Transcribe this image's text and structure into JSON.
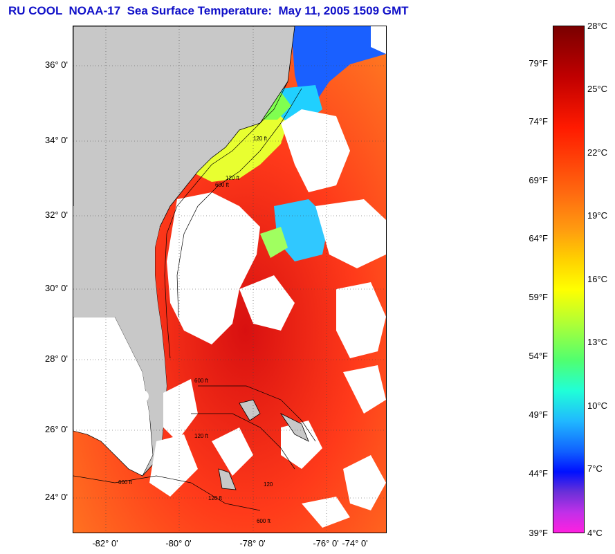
{
  "title": "RU COOL  NOAA-17  Sea Surface Temperature:  May 11, 2005 1509 GMT",
  "map": {
    "lat_labels": [
      "36° 0'",
      "34° 0'",
      "32° 0'",
      "30° 0'",
      "28° 0'",
      "26° 0'",
      "24° 0'"
    ],
    "lon_labels": [
      "-82° 0'",
      "-80° 0'",
      "-78° 0'",
      "-76° 0'",
      "-74° 0'"
    ],
    "contour_labels": [
      "120 ft",
      "600 ft",
      "120 ft",
      "120 ft",
      "600 ft",
      "600 ft",
      "120 ft",
      "120",
      "600 ft"
    ],
    "colors": {
      "land": "#c8c8c8",
      "cloud": "#ffffff",
      "warm": "#ff3a1a",
      "hot": "#e01010",
      "mid": "#ff7a20"
    }
  },
  "colorbar": {
    "celsius_labels": [
      "28°C",
      "25°C",
      "22°C",
      "19°C",
      "16°C",
      "13°C",
      "10°C",
      "7°C",
      "4°C"
    ],
    "fahrenheit_labels": [
      "79°F",
      "74°F",
      "69°F",
      "64°F",
      "59°F",
      "54°F",
      "49°F",
      "44°F",
      "39°F"
    ]
  }
}
